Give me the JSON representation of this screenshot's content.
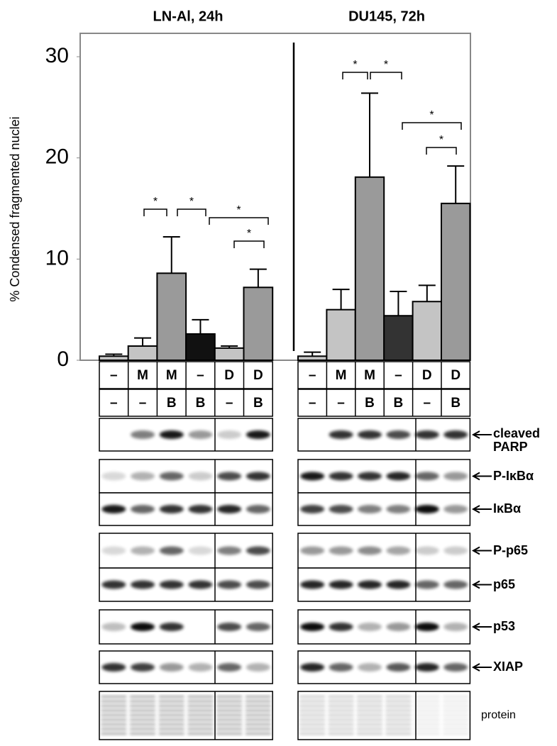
{
  "chart_data": [
    {
      "type": "bar",
      "title": "LN-Al, 24h",
      "ylabel": "% Condensed  fragmented nuclei",
      "ylim": [
        0,
        30
      ],
      "yticks": [
        0,
        10,
        20,
        30
      ],
      "values": [
        0.4,
        1.4,
        8.6,
        2.6,
        1.2,
        7.2
      ],
      "errors": [
        0.2,
        0.8,
        3.6,
        1.4,
        0.2,
        1.8
      ],
      "colors": [
        "#c4c4c4",
        "#c4c4c4",
        "#9a9a9a",
        "#111111",
        "#c4c4c4",
        "#9a9a9a"
      ],
      "conditions": [
        [
          "–",
          "M",
          "M",
          "–",
          "D",
          "D"
        ],
        [
          "–",
          "–",
          "B",
          "B",
          "–",
          "B"
        ]
      ],
      "annotations": [
        "*",
        "*",
        "*",
        "*"
      ]
    },
    {
      "type": "bar",
      "title": "DU145, 72h",
      "ylim": [
        0,
        30
      ],
      "values": [
        0.4,
        5.0,
        18.1,
        4.4,
        5.8,
        15.5
      ],
      "errors": [
        0.4,
        2.0,
        8.3,
        2.4,
        1.6,
        3.7
      ],
      "colors": [
        "#c4c4c4",
        "#c4c4c4",
        "#9a9a9a",
        "#333333",
        "#c4c4c4",
        "#9a9a9a"
      ],
      "conditions": [
        [
          "–",
          "M",
          "M",
          "–",
          "D",
          "D"
        ],
        [
          "–",
          "–",
          "B",
          "B",
          "–",
          "B"
        ]
      ],
      "annotations": [
        "*",
        "*",
        "*",
        "*"
      ]
    }
  ],
  "blot_labels": [
    "cleaved PARP",
    "P-IκBα",
    "IκBα",
    "P-p65",
    "p65",
    "p53",
    "XIAP",
    "protein"
  ]
}
